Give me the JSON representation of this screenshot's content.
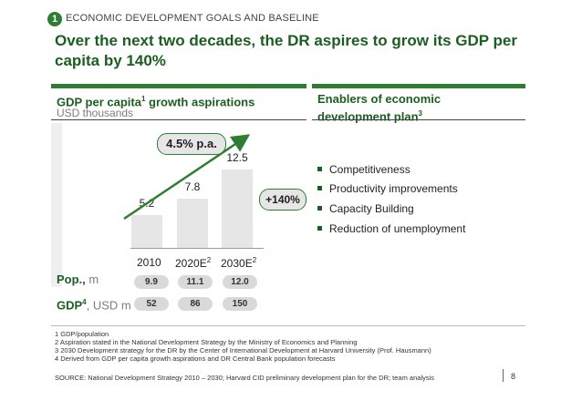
{
  "header": {
    "badge": "1",
    "section_tag": "ECONOMIC DEVELOPMENT GOALS AND BASELINE",
    "headline": "Over the next two decades, the DR aspires to grow its GDP per capita by 140%"
  },
  "left_panel": {
    "title": "GDP per capita",
    "title_sup": "1",
    "title_rest": " growth aspirations",
    "subtitle": "USD thousands",
    "growth_label": "4.5% p.a.",
    "increase_label": "+140%"
  },
  "chart_data": {
    "type": "bar",
    "categories": [
      "2010",
      "2020E",
      "2030E"
    ],
    "category_sups": [
      "",
      "2",
      "2"
    ],
    "values": [
      5.2,
      7.8,
      12.5
    ],
    "value_labels": [
      "5.2",
      "7.8",
      "12.5"
    ],
    "ylim": [
      0,
      12.5
    ]
  },
  "rows": {
    "pop_label": "Pop.,",
    "pop_unit": " m",
    "pop_values": [
      "9.9",
      "11.1",
      "12.0"
    ],
    "gdp_label": "GDP",
    "gdp_sup": "4",
    "gdp_unit": ", USD m",
    "gdp_values": [
      "52",
      "86",
      "150"
    ]
  },
  "right_panel": {
    "title_line1": "Enablers of economic",
    "title_line2": "development plan",
    "title_sup": "3",
    "bullets": [
      "Competitiveness",
      "Productivity improvements",
      "Capacity Building",
      "Reduction of unemployment"
    ]
  },
  "footnotes": [
    "1 GDP/population",
    "2 Aspiration stated in the National Development Strategy by the Ministry of Economics and Planning",
    "3 2030 Development strategy for the DR by the Center of International Development at Harvard University (Prof. Hausmann)",
    "4 Derived from GDP per capita growth aspirations and DR Central Bank population forecasts"
  ],
  "source": {
    "label": "SOURCE:",
    "text": " National Development Strategy 2010 – 2030; Harvard CID preliminary development plan for the DR; team analysis"
  },
  "page_number": "8",
  "colors": {
    "green": "#1b5e20",
    "accent": "#2e7d32",
    "bar": "#e6e6e6",
    "pill": "#d9d9d9"
  }
}
